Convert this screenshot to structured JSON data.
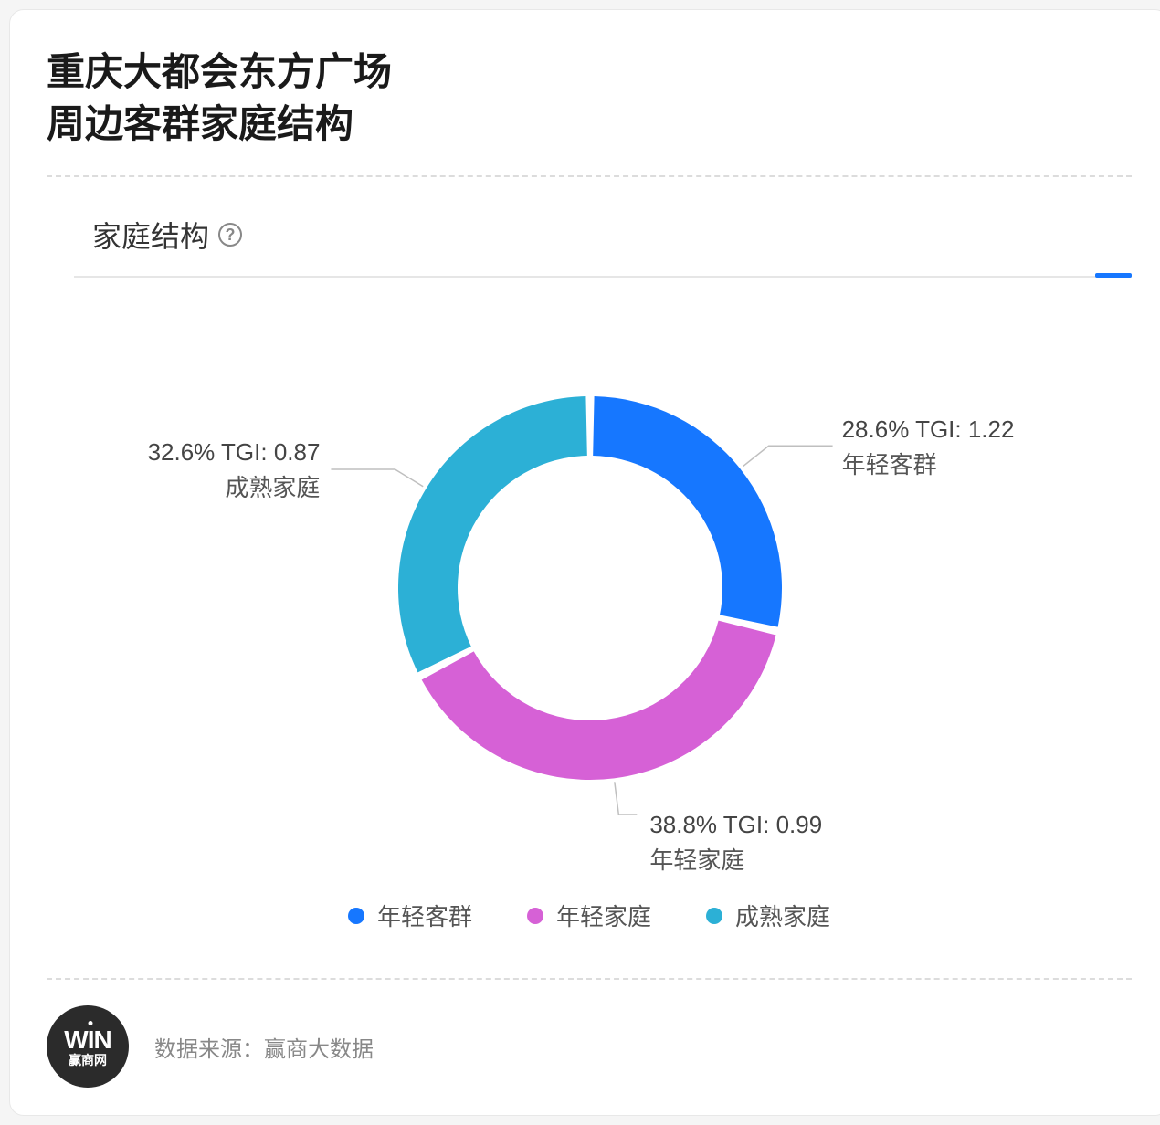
{
  "title_line1": "重庆大都会东方广场",
  "title_line2": "周边客群家庭结构",
  "section_title": "家庭结构",
  "help_glyph": "?",
  "chart": {
    "type": "donut",
    "inner_radius": 145,
    "outer_radius": 210,
    "gap_deg": 2.5,
    "start_angle_deg": -90,
    "direction": "clockwise",
    "background_color": "#ffffff",
    "label_fontsize": 26,
    "label_color": "#555555",
    "leader_color": "#bfbfbf",
    "leader_width": 1.5,
    "slices": [
      {
        "name": "年轻客群",
        "pct": 28.6,
        "tgi": 1.22,
        "color": "#1677ff"
      },
      {
        "name": "年轻家庭",
        "pct": 38.8,
        "tgi": 0.99,
        "color": "#d661d6"
      },
      {
        "name": "成熟家庭",
        "pct": 32.6,
        "tgi": 0.87,
        "color": "#2cb0d6"
      }
    ]
  },
  "legend_items": [
    {
      "label": "年轻客群",
      "color": "#1677ff"
    },
    {
      "label": "年轻家庭",
      "color": "#d661d6"
    },
    {
      "label": "成熟家庭",
      "color": "#2cb0d6"
    }
  ],
  "footer": {
    "brand_top": "WIN",
    "brand_bottom": "赢商网",
    "source_text": "数据来源：赢商大数据"
  },
  "colors": {
    "card_bg": "#ffffff",
    "card_border": "#e8e8e8",
    "divider": "#dcdcdc",
    "accent": "#1677ff",
    "text_primary": "#1a1a1a",
    "text_secondary": "#555555",
    "text_muted": "#888888"
  }
}
